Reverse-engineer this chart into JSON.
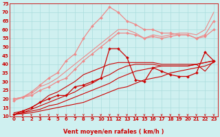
{
  "background_color": "#cff0f0",
  "grid_color": "#aadddd",
  "xlabel": "Vent moyen/en rafales ( km/h )",
  "xlim": [
    -0.5,
    23.5
  ],
  "ylim": [
    10,
    75
  ],
  "yticks": [
    10,
    15,
    20,
    25,
    30,
    35,
    40,
    45,
    50,
    55,
    60,
    65,
    70,
    75
  ],
  "xticks": [
    0,
    1,
    2,
    3,
    4,
    5,
    6,
    7,
    8,
    9,
    10,
    11,
    12,
    13,
    14,
    15,
    16,
    17,
    18,
    19,
    20,
    21,
    22,
    23
  ],
  "series": [
    {
      "x": [
        0,
        1,
        2,
        3,
        4,
        5,
        6,
        7,
        8,
        9,
        10,
        11,
        12,
        13,
        14,
        15,
        16,
        17,
        18,
        19,
        20,
        21,
        22,
        23
      ],
      "y": [
        11,
        13,
        15,
        18,
        20,
        22,
        22,
        27,
        28,
        30,
        32,
        49,
        49,
        44,
        31,
        30,
        38,
        36,
        34,
        33,
        33,
        35,
        47,
        42
      ],
      "color": "#cc0000",
      "marker": "D",
      "markersize": 2.0,
      "linewidth": 0.9,
      "zorder": 5
    },
    {
      "x": [
        0,
        1,
        2,
        3,
        4,
        5,
        6,
        7,
        8,
        9,
        10,
        11,
        12,
        13,
        14,
        15,
        16,
        17,
        18,
        19,
        20,
        21,
        22,
        23
      ],
      "y": [
        11,
        11.5,
        12,
        13,
        14,
        15,
        16,
        17,
        18,
        20,
        22,
        24,
        26,
        27,
        29,
        31,
        32,
        33,
        35,
        36,
        37,
        38,
        39,
        41
      ],
      "color": "#cc0000",
      "marker": null,
      "markersize": 0,
      "linewidth": 0.8,
      "zorder": 3
    },
    {
      "x": [
        0,
        1,
        2,
        3,
        4,
        5,
        6,
        7,
        8,
        9,
        10,
        11,
        12,
        13,
        14,
        15,
        16,
        17,
        18,
        19,
        20,
        21,
        22,
        23
      ],
      "y": [
        11,
        12,
        13,
        14,
        16,
        17,
        19,
        21,
        23,
        25,
        27,
        29,
        32,
        34,
        36,
        37,
        38,
        39,
        39,
        39,
        39,
        40,
        41,
        42
      ],
      "color": "#cc0000",
      "marker": null,
      "markersize": 0,
      "linewidth": 0.8,
      "zorder": 3
    },
    {
      "x": [
        0,
        1,
        2,
        3,
        4,
        5,
        6,
        7,
        8,
        9,
        10,
        11,
        12,
        13,
        14,
        15,
        16,
        17,
        18,
        19,
        20,
        21,
        22,
        23
      ],
      "y": [
        11,
        12,
        14,
        16,
        18,
        20,
        22,
        24,
        27,
        29,
        32,
        34,
        37,
        39,
        40,
        40,
        40,
        39,
        39,
        39,
        39,
        40,
        36,
        42
      ],
      "color": "#cc0000",
      "marker": null,
      "markersize": 0,
      "linewidth": 0.8,
      "zorder": 3
    },
    {
      "x": [
        0,
        1,
        2,
        3,
        4,
        5,
        6,
        7,
        8,
        9,
        10,
        11,
        12,
        13,
        14,
        15,
        16,
        17,
        18,
        19,
        20,
        21,
        22,
        23
      ],
      "y": [
        12,
        13,
        15,
        18,
        22,
        24,
        27,
        30,
        34,
        36,
        38,
        40,
        41,
        41,
        41,
        41,
        41,
        40,
        40,
        40,
        40,
        40,
        41,
        42
      ],
      "color": "#cc0000",
      "marker": null,
      "markersize": 0,
      "linewidth": 0.8,
      "zorder": 3
    },
    {
      "x": [
        0,
        1,
        2,
        3,
        4,
        5,
        6,
        7,
        8,
        9,
        10,
        11,
        12,
        13,
        14,
        15,
        16,
        17,
        18,
        19,
        20,
        21,
        22,
        23
      ],
      "y": [
        19,
        21,
        22,
        25,
        27,
        30,
        32,
        37,
        42,
        46,
        50,
        54,
        58,
        58,
        57,
        55,
        56,
        55,
        56,
        57,
        57,
        55,
        57,
        65
      ],
      "color": "#ee8888",
      "marker": "D",
      "markersize": 2.0,
      "linewidth": 0.9,
      "zorder": 4
    },
    {
      "x": [
        0,
        1,
        2,
        3,
        4,
        5,
        6,
        7,
        8,
        9,
        10,
        11,
        12,
        13,
        14,
        15,
        16,
        17,
        18,
        19,
        20,
        21,
        22,
        23
      ],
      "y": [
        20,
        21,
        23,
        27,
        29,
        32,
        36,
        40,
        44,
        48,
        52,
        56,
        60,
        60,
        58,
        55,
        57,
        56,
        57,
        58,
        58,
        57,
        60,
        70
      ],
      "color": "#ee8888",
      "marker": null,
      "markersize": 0,
      "linewidth": 0.8,
      "zorder": 2
    },
    {
      "x": [
        0,
        1,
        2,
        3,
        4,
        5,
        6,
        7,
        8,
        9,
        10,
        11,
        12,
        13,
        14,
        15,
        16,
        17,
        18,
        19,
        20,
        21,
        22,
        23
      ],
      "y": [
        20,
        21,
        24,
        28,
        32,
        35,
        42,
        46,
        55,
        62,
        67,
        73,
        70,
        65,
        63,
        60,
        60,
        58,
        58,
        57,
        57,
        55,
        56,
        60
      ],
      "color": "#ee8888",
      "marker": "D",
      "markersize": 2.0,
      "linewidth": 0.9,
      "zorder": 4
    }
  ],
  "arrow_color": "#cc0000",
  "label_color": "#cc0000",
  "tick_fontsize": 5,
  "xlabel_fontsize": 6
}
